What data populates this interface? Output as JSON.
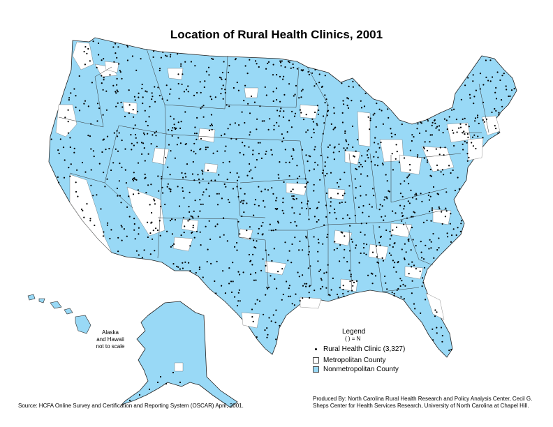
{
  "title": "Location of Rural Health Clinics, 2001",
  "inset_note": {
    "line1": "Alaska",
    "line2": "and Hawaii",
    "line3": "not to scale"
  },
  "legend": {
    "title": "Legend",
    "subtitle": "( ) = N",
    "items": [
      {
        "label": "Rural Health Clinic (3,327)",
        "symbol": "dot",
        "color": "#000000"
      },
      {
        "label": "Metropolitan County",
        "symbol": "square",
        "color": "#ffffff"
      },
      {
        "label": "Nonmetropolitan County",
        "symbol": "square",
        "color": "#99d9f6"
      }
    ]
  },
  "colors": {
    "nonmetro": "#99d9f6",
    "metro": "#ffffff",
    "border": "#222222",
    "clinic": "#000000"
  },
  "source": "Source: HCFA Online Survey and Certification and Reporting System (OSCAR) April, 2001.",
  "producer": {
    "line1": "Produced By: North Carolina Rural Health Research and Policy Analysis Center, Cecil G.",
    "line2": "Sheps Center for Health Services Research, University of North Carolina at Chapel Hill."
  }
}
